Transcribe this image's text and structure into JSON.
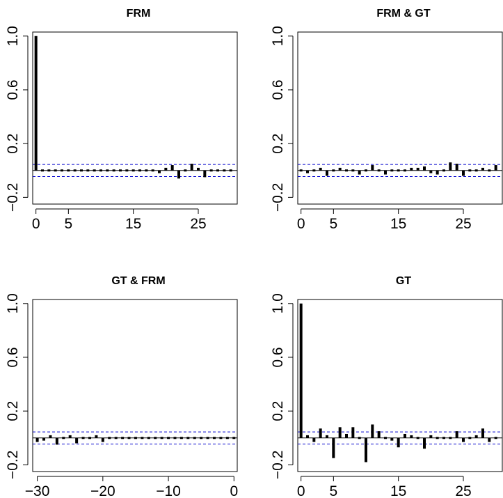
{
  "figure": {
    "conf_limit": 0.045,
    "colors": {
      "bar": "#000000",
      "zero_line": "#000000",
      "conf_lines": "#0000cc",
      "frame": "#000000"
    }
  },
  "chart_data": [
    {
      "type": "bar",
      "title": "FRM",
      "xlim": [
        -0.5,
        31
      ],
      "ylim": [
        -0.25,
        1.03
      ],
      "xticks": [
        0,
        5,
        15,
        25
      ],
      "xtick_labels": [
        "0",
        "5",
        "15",
        "25"
      ],
      "yticks": [
        -0.2,
        0.2,
        0.6,
        1.0
      ],
      "ytick_labels": [
        "−0.2",
        "0.2",
        "0.6",
        "1.0"
      ],
      "x": [
        0,
        1,
        2,
        3,
        4,
        5,
        6,
        7,
        8,
        9,
        10,
        11,
        12,
        13,
        14,
        15,
        16,
        17,
        18,
        19,
        20,
        21,
        22,
        23,
        24,
        25,
        26,
        27,
        28,
        29,
        30
      ],
      "values": [
        1.0,
        -0.01,
        -0.01,
        0.01,
        0.0,
        -0.01,
        0.0,
        -0.01,
        0.0,
        -0.01,
        0.0,
        -0.01,
        -0.01,
        0.01,
        -0.01,
        0.0,
        -0.01,
        -0.01,
        0.01,
        -0.02,
        0.02,
        0.04,
        -0.06,
        0.01,
        0.05,
        0.02,
        -0.05,
        -0.01,
        0.0,
        -0.01,
        0.0
      ]
    },
    {
      "type": "bar",
      "title": "FRM & GT",
      "xlim": [
        -0.5,
        31
      ],
      "ylim": [
        -0.25,
        1.03
      ],
      "xticks": [
        0,
        5,
        15,
        25
      ],
      "xtick_labels": [
        "0",
        "5",
        "15",
        "25"
      ],
      "yticks": [
        -0.2,
        0.2,
        0.6,
        1.0
      ],
      "ytick_labels": [
        "−0.2",
        "0.2",
        "0.6",
        "1.0"
      ],
      "x": [
        0,
        1,
        2,
        3,
        4,
        5,
        6,
        7,
        8,
        9,
        10,
        11,
        12,
        13,
        14,
        15,
        16,
        17,
        18,
        19,
        20,
        21,
        22,
        23,
        24,
        25,
        26,
        27,
        28,
        29,
        30
      ],
      "values": [
        0.01,
        -0.02,
        0.01,
        0.02,
        -0.04,
        0.01,
        0.02,
        -0.01,
        0.0,
        -0.03,
        0.01,
        0.04,
        0.01,
        -0.03,
        0.0,
        -0.01,
        0.0,
        0.02,
        0.02,
        0.03,
        -0.02,
        -0.03,
        0.01,
        0.06,
        0.05,
        -0.04,
        0.01,
        0.0,
        0.02,
        -0.01,
        0.04
      ]
    },
    {
      "type": "bar",
      "title": "GT & FRM",
      "xlim": [
        -30.7,
        0.5
      ],
      "ylim": [
        -0.25,
        1.03
      ],
      "xticks": [
        -30,
        -20,
        -10,
        0
      ],
      "xtick_labels": [
        "−30",
        "−20",
        "−10",
        "0"
      ],
      "yticks": [
        -0.2,
        0.2,
        0.6,
        1.0
      ],
      "ytick_labels": [
        "−0.2",
        "0.2",
        "0.6",
        "1.0"
      ],
      "x": [
        -30,
        -29,
        -28,
        -27,
        -26,
        -25,
        -24,
        -23,
        -22,
        -21,
        -20,
        -19,
        -18,
        -17,
        -16,
        -15,
        -14,
        -13,
        -12,
        -11,
        -10,
        -9,
        -8,
        -7,
        -6,
        -5,
        -4,
        -3,
        -2,
        -1,
        0
      ],
      "values": [
        -0.03,
        -0.02,
        0.02,
        -0.05,
        -0.01,
        0.02,
        -0.04,
        -0.01,
        0.0,
        0.02,
        -0.03,
        0.0,
        0.0,
        0.01,
        0.0,
        0.0,
        0.01,
        0.0,
        0.01,
        -0.01,
        0.01,
        0.0,
        0.0,
        0.0,
        0.0,
        0.01,
        0.01,
        0.0,
        -0.01,
        0.01,
        0.01
      ]
    },
    {
      "type": "bar",
      "title": "GT",
      "xlim": [
        -0.5,
        31
      ],
      "ylim": [
        -0.25,
        1.03
      ],
      "xticks": [
        0,
        5,
        15,
        25
      ],
      "xtick_labels": [
        "0",
        "5",
        "15",
        "25"
      ],
      "yticks": [
        -0.2,
        0.2,
        0.6,
        1.0
      ],
      "ytick_labels": [
        "−0.2",
        "0.2",
        "0.6",
        "1.0"
      ],
      "x": [
        0,
        1,
        2,
        3,
        4,
        5,
        6,
        7,
        8,
        9,
        10,
        11,
        12,
        13,
        14,
        15,
        16,
        17,
        18,
        19,
        20,
        21,
        22,
        23,
        24,
        25,
        26,
        27,
        28,
        29,
        30
      ],
      "values": [
        1.0,
        0.02,
        -0.03,
        0.07,
        0.02,
        -0.15,
        0.08,
        0.03,
        0.08,
        0.01,
        -0.18,
        0.1,
        0.05,
        0.01,
        -0.02,
        -0.07,
        0.03,
        0.02,
        0.0,
        -0.08,
        0.02,
        -0.01,
        0.0,
        0.01,
        0.05,
        -0.03,
        0.0,
        0.02,
        0.07,
        -0.03,
        0.0
      ]
    }
  ]
}
